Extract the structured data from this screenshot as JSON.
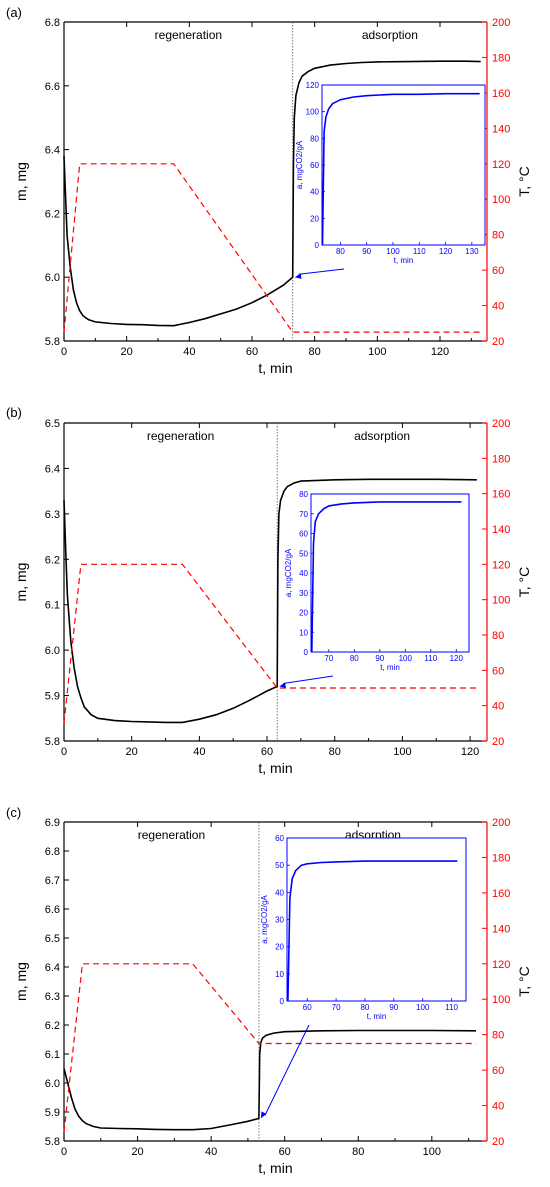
{
  "chart_data": [
    {
      "type": "line",
      "panel_label": "(a)",
      "xlabel": "t, min",
      "ylabel": "m, mg",
      "y2label": "T, °C",
      "xlim": [
        0,
        135
      ],
      "xticks": [
        0,
        20,
        40,
        60,
        80,
        100,
        120
      ],
      "ylim": [
        5.8,
        6.8
      ],
      "yticks": [
        5.8,
        6.0,
        6.2,
        6.4,
        6.6,
        6.8
      ],
      "y2lim": [
        20,
        200
      ],
      "y2ticks": [
        20,
        40,
        60,
        80,
        100,
        120,
        140,
        160,
        180,
        200
      ],
      "region_labels": [
        "regeneration",
        "adsorption"
      ],
      "divider_x": 73,
      "series": [
        {
          "axis": "left",
          "color": "#000000",
          "style": "solid",
          "points": [
            [
              0,
              6.38
            ],
            [
              0.5,
              6.25
            ],
            [
              1,
              6.13
            ],
            [
              2,
              6.03
            ],
            [
              3,
              5.96
            ],
            [
              4,
              5.92
            ],
            [
              5,
              5.895
            ],
            [
              6,
              5.88
            ],
            [
              7,
              5.872
            ],
            [
              8,
              5.866
            ],
            [
              10,
              5.86
            ],
            [
              15,
              5.855
            ],
            [
              20,
              5.852
            ],
            [
              25,
              5.851
            ],
            [
              30,
              5.849
            ],
            [
              35,
              5.848
            ],
            [
              40,
              5.858
            ],
            [
              45,
              5.87
            ],
            [
              50,
              5.885
            ],
            [
              55,
              5.9
            ],
            [
              60,
              5.92
            ],
            [
              65,
              5.945
            ],
            [
              70,
              5.975
            ],
            [
              73,
              6.0
            ],
            [
              73.2,
              6.35
            ],
            [
              73.5,
              6.5
            ],
            [
              74,
              6.57
            ],
            [
              75,
              6.61
            ],
            [
              76,
              6.63
            ],
            [
              78,
              6.645
            ],
            [
              80,
              6.655
            ],
            [
              85,
              6.665
            ],
            [
              90,
              6.67
            ],
            [
              95,
              6.673
            ],
            [
              100,
              6.675
            ],
            [
              110,
              6.676
            ],
            [
              120,
              6.677
            ],
            [
              128,
              6.677
            ],
            [
              133,
              6.676
            ]
          ]
        },
        {
          "axis": "right",
          "color": "#ff0000",
          "style": "dashed",
          "points": [
            [
              0,
              25
            ],
            [
              5,
              120
            ],
            [
              35,
              120
            ],
            [
              73,
              25
            ],
            [
              133,
              25
            ]
          ]
        }
      ],
      "inset": {
        "xlabel": "t, min",
        "ylabel": "a, mgCO2/gA",
        "xlim": [
          73,
          135
        ],
        "xticks": [
          80,
          90,
          100,
          110,
          120,
          130
        ],
        "ylim": [
          0,
          120
        ],
        "yticks": [
          0,
          20,
          40,
          60,
          80,
          100,
          120
        ],
        "color": "#0000ff",
        "points": [
          [
            73.2,
            0
          ],
          [
            73.8,
            85
          ],
          [
            74.5,
            96
          ],
          [
            75.5,
            102
          ],
          [
            77,
            106
          ],
          [
            80,
            109
          ],
          [
            85,
            111
          ],
          [
            90,
            112
          ],
          [
            100,
            113
          ],
          [
            110,
            113
          ],
          [
            120,
            113.5
          ],
          [
            130,
            113.5
          ],
          [
            133,
            113.5
          ]
        ]
      }
    },
    {
      "type": "line",
      "panel_label": "(b)",
      "xlabel": "t, min",
      "ylabel": "m, mg",
      "y2label": "T, °C",
      "xlim": [
        0,
        125
      ],
      "xticks": [
        0,
        20,
        40,
        60,
        80,
        100,
        120
      ],
      "ylim": [
        5.8,
        6.5
      ],
      "yticks": [
        5.8,
        5.9,
        6.0,
        6.1,
        6.2,
        6.3,
        6.4,
        6.5
      ],
      "y2lim": [
        20,
        200
      ],
      "y2ticks": [
        20,
        40,
        60,
        80,
        100,
        120,
        140,
        160,
        180,
        200
      ],
      "region_labels": [
        "regeneration",
        "adsorption"
      ],
      "divider_x": 63,
      "series": [
        {
          "axis": "left",
          "color": "#000000",
          "style": "solid",
          "points": [
            [
              0,
              6.33
            ],
            [
              0.5,
              6.22
            ],
            [
              1,
              6.12
            ],
            [
              2,
              6.02
            ],
            [
              3,
              5.96
            ],
            [
              4,
              5.92
            ],
            [
              5,
              5.895
            ],
            [
              6,
              5.875
            ],
            [
              8,
              5.858
            ],
            [
              10,
              5.85
            ],
            [
              15,
              5.845
            ],
            [
              20,
              5.843
            ],
            [
              25,
              5.842
            ],
            [
              30,
              5.841
            ],
            [
              35,
              5.841
            ],
            [
              40,
              5.848
            ],
            [
              45,
              5.858
            ],
            [
              50,
              5.872
            ],
            [
              55,
              5.89
            ],
            [
              60,
              5.91
            ],
            [
              63,
              5.92
            ],
            [
              63.2,
              6.2
            ],
            [
              63.5,
              6.3
            ],
            [
              64,
              6.33
            ],
            [
              65,
              6.35
            ],
            [
              66,
              6.36
            ],
            [
              68,
              6.368
            ],
            [
              70,
              6.372
            ],
            [
              80,
              6.375
            ],
            [
              90,
              6.376
            ],
            [
              100,
              6.376
            ],
            [
              110,
              6.376
            ],
            [
              122,
              6.375
            ]
          ]
        },
        {
          "axis": "right",
          "color": "#ff0000",
          "style": "dashed",
          "points": [
            [
              0,
              30
            ],
            [
              5,
              120
            ],
            [
              35,
              120
            ],
            [
              63,
              50
            ],
            [
              122,
              50
            ]
          ]
        }
      ],
      "inset": {
        "xlabel": "t, min",
        "ylabel": "a, mgCO2/gA",
        "xlim": [
          63,
          125
        ],
        "xticks": [
          70,
          80,
          90,
          100,
          110,
          120
        ],
        "ylim": [
          0,
          80
        ],
        "yticks": [
          0,
          10,
          20,
          30,
          40,
          50,
          60,
          70,
          80
        ],
        "color": "#0000ff",
        "points": [
          [
            63.3,
            0
          ],
          [
            64,
            55
          ],
          [
            64.7,
            66
          ],
          [
            66,
            70
          ],
          [
            68,
            72.5
          ],
          [
            70,
            74
          ],
          [
            75,
            75
          ],
          [
            80,
            75.5
          ],
          [
            90,
            76
          ],
          [
            100,
            76
          ],
          [
            110,
            76
          ],
          [
            120,
            76
          ],
          [
            122,
            76
          ]
        ]
      }
    },
    {
      "type": "line",
      "panel_label": "(c)",
      "xlabel": "t, min",
      "ylabel": "m, mg",
      "y2label": "T, °C",
      "xlim": [
        0,
        115
      ],
      "xticks": [
        0,
        20,
        40,
        60,
        80,
        100
      ],
      "ylim": [
        5.8,
        6.9
      ],
      "yticks": [
        5.8,
        5.9,
        6.0,
        6.1,
        6.2,
        6.3,
        6.4,
        6.5,
        6.6,
        6.7,
        6.8,
        6.9
      ],
      "y2lim": [
        20,
        200
      ],
      "y2ticks": [
        20,
        40,
        60,
        80,
        100,
        120,
        140,
        160,
        180,
        200
      ],
      "region_labels": [
        "regeneration",
        "adsorption"
      ],
      "divider_x": 53,
      "series": [
        {
          "axis": "left",
          "color": "#000000",
          "style": "solid",
          "points": [
            [
              0,
              6.05
            ],
            [
              1,
              6.0
            ],
            [
              2,
              5.95
            ],
            [
              3,
              5.91
            ],
            [
              4,
              5.885
            ],
            [
              5,
              5.87
            ],
            [
              6,
              5.86
            ],
            [
              8,
              5.85
            ],
            [
              10,
              5.845
            ],
            [
              15,
              5.843
            ],
            [
              20,
              5.842
            ],
            [
              25,
              5.84
            ],
            [
              30,
              5.839
            ],
            [
              35,
              5.839
            ],
            [
              40,
              5.843
            ],
            [
              45,
              5.855
            ],
            [
              50,
              5.868
            ],
            [
              53,
              5.878
            ],
            [
              53.2,
              6.1
            ],
            [
              53.5,
              6.14
            ],
            [
              54,
              6.155
            ],
            [
              55,
              6.165
            ],
            [
              57,
              6.172
            ],
            [
              60,
              6.177
            ],
            [
              70,
              6.18
            ],
            [
              80,
              6.181
            ],
            [
              90,
              6.181
            ],
            [
              100,
              6.181
            ],
            [
              112,
              6.18
            ]
          ]
        },
        {
          "axis": "right",
          "color": "#ff0000",
          "style": "dashed",
          "points": [
            [
              0,
              25
            ],
            [
              5,
              120
            ],
            [
              35,
              120
            ],
            [
              53,
              75
            ],
            [
              112,
              75
            ]
          ]
        }
      ],
      "inset": {
        "xlabel": "t, min",
        "ylabel": "a, mgCO2/gA",
        "xlim": [
          53,
          115
        ],
        "xticks": [
          60,
          70,
          80,
          90,
          100,
          110
        ],
        "ylim": [
          0,
          60
        ],
        "yticks": [
          0,
          10,
          20,
          30,
          40,
          50,
          60
        ],
        "color": "#0000ff",
        "points": [
          [
            53.3,
            0
          ],
          [
            54,
            38
          ],
          [
            54.8,
            45
          ],
          [
            56,
            48
          ],
          [
            58,
            50
          ],
          [
            60,
            50.5
          ],
          [
            65,
            51
          ],
          [
            70,
            51.2
          ],
          [
            80,
            51.5
          ],
          [
            90,
            51.5
          ],
          [
            100,
            51.5
          ],
          [
            110,
            51.5
          ],
          [
            112,
            51.5
          ]
        ]
      }
    }
  ]
}
